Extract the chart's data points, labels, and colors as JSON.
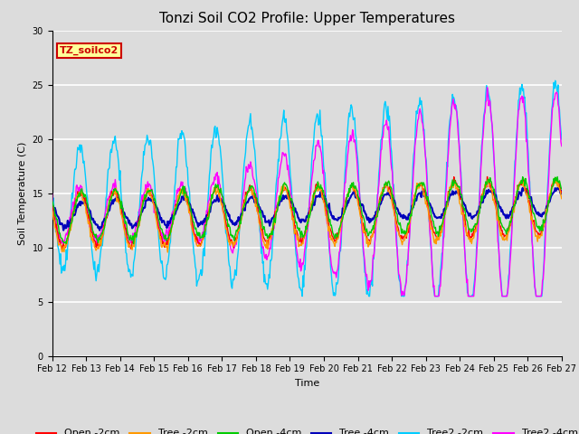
{
  "title": "Tonzi Soil CO2 Profile: Upper Temperatures",
  "xlabel": "Time",
  "ylabel": "Soil Temperature (C)",
  "ylim": [
    0,
    30
  ],
  "yticks": [
    0,
    5,
    10,
    15,
    20,
    25,
    30
  ],
  "series_colors": {
    "Open -2cm": "#ff0000",
    "Tree -2cm": "#ff9900",
    "Open -4cm": "#00cc00",
    "Tree -4cm": "#0000bb",
    "Tree2 -2cm": "#00ccff",
    "Tree2 -4cm": "#ff00ff"
  },
  "bg_color": "#dcdcdc",
  "annotation_text": "TZ_soilco2",
  "annotation_bg": "#ffff99",
  "annotation_fg": "#cc0000",
  "title_fontsize": 11,
  "label_fontsize": 8,
  "tick_fontsize": 7,
  "legend_fontsize": 8
}
